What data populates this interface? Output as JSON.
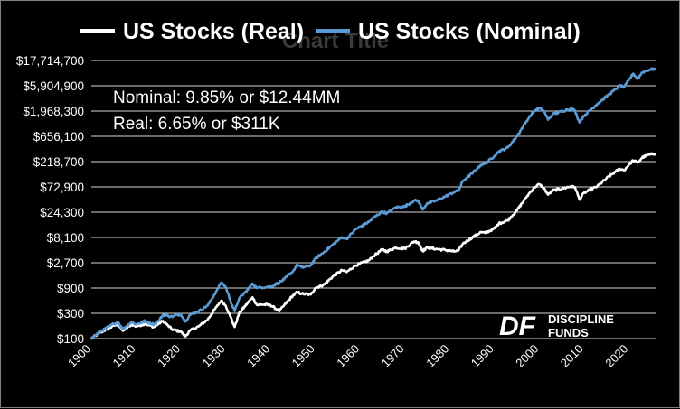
{
  "chart_data": {
    "type": "line",
    "title": "Chart Title",
    "yscale": "log",
    "ylim": [
      100,
      17714700
    ],
    "xlim": [
      1900,
      2026
    ],
    "yticks": [
      {
        "value": 100,
        "label": "$100"
      },
      {
        "value": 300,
        "label": "$300"
      },
      {
        "value": 900,
        "label": "$900"
      },
      {
        "value": 2700,
        "label": "$2,700"
      },
      {
        "value": 8100,
        "label": "$8,100"
      },
      {
        "value": 24300,
        "label": "$24,300"
      },
      {
        "value": 72900,
        "label": "$72,900"
      },
      {
        "value": 218700,
        "label": "$218,700"
      },
      {
        "value": 656100,
        "label": "$656,100"
      },
      {
        "value": 1968300,
        "label": "$1,968,300"
      },
      {
        "value": 5904900,
        "label": "$5,904,900"
      },
      {
        "value": 17714700,
        "label": "$17,714,700"
      }
    ],
    "xticks": [
      {
        "value": 1900,
        "label": "1900"
      },
      {
        "value": 1910,
        "label": "1910"
      },
      {
        "value": 1920,
        "label": "1920"
      },
      {
        "value": 1930,
        "label": "1930"
      },
      {
        "value": 1940,
        "label": "1940"
      },
      {
        "value": 1950,
        "label": "1950"
      },
      {
        "value": 1960,
        "label": "1960"
      },
      {
        "value": 1970,
        "label": "1970"
      },
      {
        "value": 1980,
        "label": "1980"
      },
      {
        "value": 1990,
        "label": "1990"
      },
      {
        "value": 2000,
        "label": "2000"
      },
      {
        "value": 2010,
        "label": "2010"
      },
      {
        "value": 2020,
        "label": "2020"
      }
    ],
    "grid": true,
    "legend_position": "top",
    "annotations": [
      "Nominal: 9.85% or $12.44MM",
      "Real: 6.65% or $311K"
    ],
    "series": [
      {
        "name": "US Stocks (Real)",
        "color": "#ffffff",
        "x": [
          1900,
          1902,
          1905,
          1906,
          1907,
          1909,
          1910,
          1912,
          1914,
          1915,
          1916,
          1917,
          1918,
          1920,
          1921,
          1922,
          1924,
          1926,
          1928,
          1929,
          1930,
          1931,
          1932,
          1933,
          1935,
          1936,
          1937,
          1938,
          1940,
          1942,
          1943,
          1945,
          1946,
          1947,
          1949,
          1950,
          1952,
          1954,
          1956,
          1957,
          1959,
          1962,
          1963,
          1965,
          1966,
          1968,
          1970,
          1972,
          1973,
          1974,
          1975,
          1977,
          1979,
          1981,
          1982,
          1983,
          1985,
          1987,
          1988,
          1990,
          1991,
          1993,
          1995,
          1997,
          1998,
          1999,
          2000,
          2001,
          2002,
          2003,
          2007,
          2008,
          2009,
          2010,
          2013,
          2015,
          2017,
          2018,
          2019,
          2020,
          2021,
          2022,
          2023,
          2024,
          2025,
          2026
        ],
        "values": [
          100,
          130,
          175,
          185,
          140,
          185,
          170,
          190,
          165,
          190,
          215,
          180,
          150,
          135,
          110,
          140,
          170,
          230,
          400,
          520,
          420,
          270,
          165,
          300,
          480,
          600,
          430,
          440,
          430,
          330,
          420,
          650,
          750,
          700,
          680,
          900,
          1050,
          1500,
          1950,
          1800,
          2400,
          3000,
          3600,
          4800,
          4400,
          5200,
          5000,
          6800,
          6600,
          4500,
          5200,
          4900,
          4700,
          4400,
          4600,
          6200,
          8000,
          10200,
          9800,
          12000,
          14800,
          17000,
          26000,
          45000,
          58000,
          72000,
          82000,
          70000,
          52000,
          62000,
          74000,
          72000,
          42000,
          56000,
          75000,
          105000,
          140000,
          160000,
          150000,
          190000,
          230000,
          210000,
          260000,
          285000,
          300000,
          311000
        ]
      },
      {
        "name": "US Stocks (Nominal)",
        "color": "#5b9bd5",
        "x": [
          1900,
          1902,
          1905,
          1906,
          1907,
          1909,
          1910,
          1912,
          1914,
          1915,
          1916,
          1917,
          1918,
          1920,
          1921,
          1922,
          1924,
          1926,
          1928,
          1929,
          1930,
          1931,
          1932,
          1933,
          1935,
          1936,
          1937,
          1938,
          1940,
          1942,
          1943,
          1945,
          1946,
          1947,
          1949,
          1950,
          1952,
          1954,
          1956,
          1957,
          1959,
          1962,
          1963,
          1965,
          1966,
          1968,
          1970,
          1972,
          1973,
          1974,
          1975,
          1977,
          1979,
          1981,
          1982,
          1983,
          1985,
          1987,
          1988,
          1990,
          1991,
          1993,
          1995,
          1997,
          1998,
          1999,
          2000,
          2001,
          2002,
          2003,
          2007,
          2008,
          2009,
          2010,
          2013,
          2015,
          2017,
          2018,
          2019,
          2020,
          2021,
          2022,
          2023,
          2024,
          2025,
          2026
        ],
        "values": [
          100,
          135,
          190,
          205,
          150,
          205,
          185,
          215,
          185,
          215,
          280,
          270,
          260,
          290,
          210,
          280,
          330,
          420,
          800,
          1150,
          950,
          540,
          330,
          570,
          850,
          1100,
          900,
          930,
          950,
          1150,
          1300,
          1850,
          2500,
          2200,
          2400,
          3200,
          4300,
          6000,
          8200,
          7600,
          11500,
          16000,
          19000,
          25000,
          23000,
          30000,
          31000,
          40000,
          40000,
          27000,
          36000,
          40000,
          48000,
          58000,
          62000,
          95000,
          130000,
          190000,
          200000,
          280000,
          340000,
          400000,
          650000,
          1200000,
          1600000,
          2000000,
          2200000,
          2000000,
          1350000,
          1700000,
          2200000,
          2000000,
          1200000,
          1600000,
          2700000,
          3700000,
          5000000,
          6000000,
          5500000,
          7500000,
          10000000,
          8000000,
          10500000,
          11500000,
          12000000,
          12440000
        ]
      }
    ]
  },
  "legend": {
    "real_label": "US Stocks (Real)",
    "nominal_label": "US Stocks (Nominal)"
  },
  "logo": {
    "mark": "DF",
    "line1": "DISCIPLINE",
    "line2": "FUNDS"
  }
}
